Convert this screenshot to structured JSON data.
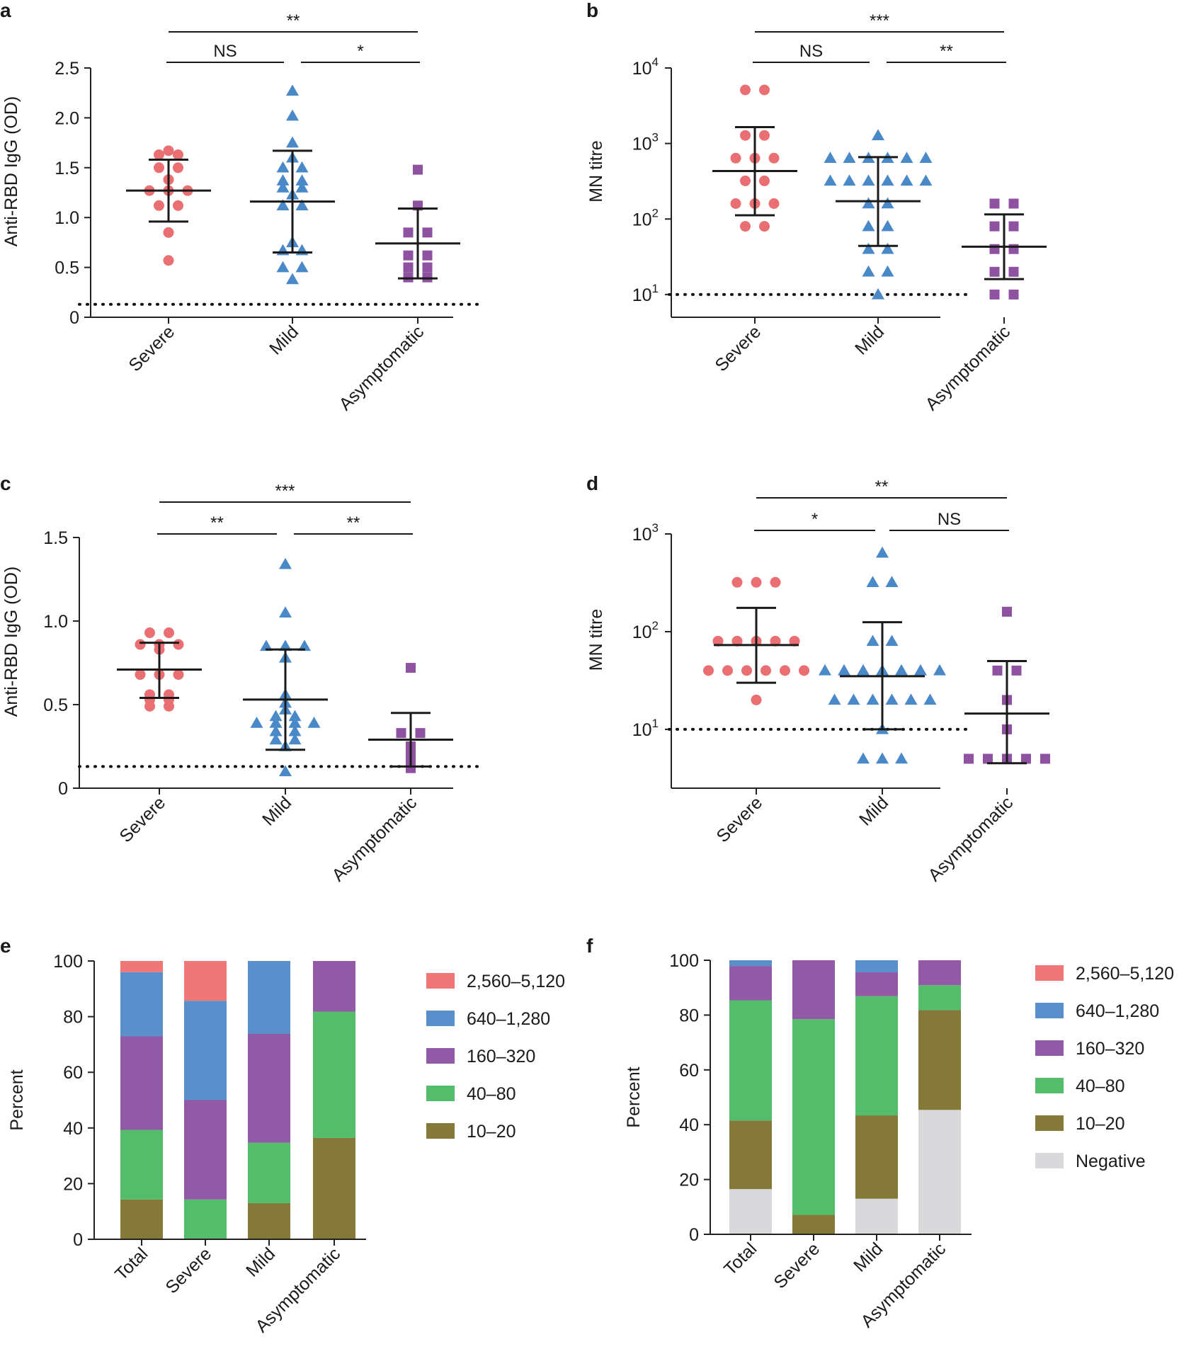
{
  "chart_data": [
    {
      "id": "a",
      "panel_label": "a",
      "type": "scatter",
      "ylabel": "Anti-RBD IgG (OD)",
      "ylim": [
        0,
        2.5
      ],
      "yticks": [
        "0",
        "0.5",
        "1.0",
        "1.5",
        "2.0",
        "2.5"
      ],
      "yscale": "linear",
      "categories": [
        "Severe",
        "Mild",
        "Asymptomatic"
      ],
      "cutoff": 0.13,
      "groups": [
        {
          "category": "Severe",
          "marker": "circle",
          "color": "#ea6f73",
          "values": [
            1.67,
            1.63,
            1.63,
            1.5,
            1.5,
            1.38,
            1.27,
            1.27,
            1.27,
            1.12,
            1.12,
            0.85,
            0.57
          ],
          "mean": 1.27,
          "sd_low": 0.96,
          "sd_high": 1.58
        },
        {
          "category": "Mild",
          "marker": "triangle",
          "color": "#4a89c8",
          "values": [
            2.27,
            2.02,
            1.75,
            1.6,
            1.5,
            1.5,
            1.37,
            1.37,
            1.3,
            1.3,
            1.23,
            1.12,
            1.12,
            0.75,
            0.67,
            0.67,
            0.5,
            0.5,
            0.38
          ],
          "mean": 1.16,
          "sd_low": 0.65,
          "sd_high": 1.67
        },
        {
          "category": "Asymptomatic",
          "marker": "square",
          "color": "#8e52a1",
          "values": [
            1.48,
            1.12,
            0.85,
            0.85,
            0.62,
            0.62,
            0.5,
            0.5,
            0.4,
            0.4
          ],
          "mean": 0.74,
          "sd_low": 0.39,
          "sd_high": 1.09
        }
      ],
      "comparisons": [
        {
          "from": "Severe",
          "to": "Mild",
          "label": "NS",
          "level": 1
        },
        {
          "from": "Mild",
          "to": "Asymptomatic",
          "label": "*",
          "level": 1
        },
        {
          "from": "Severe",
          "to": "Asymptomatic",
          "label": "**",
          "level": 2
        }
      ]
    },
    {
      "id": "b",
      "panel_label": "b",
      "type": "scatter",
      "ylabel": "MN titre",
      "ylim": [
        5,
        10000
      ],
      "yscale": "log",
      "yticks_log": [
        {
          "base": "10",
          "exp": "1"
        },
        {
          "base": "10",
          "exp": "2"
        },
        {
          "base": "10",
          "exp": "3"
        },
        {
          "base": "10",
          "exp": "4"
        }
      ],
      "categories": [
        "Severe",
        "Mild",
        "Asymptomatic"
      ],
      "cutoff": 10,
      "groups": [
        {
          "category": "Severe",
          "marker": "circle",
          "color": "#ea6f73",
          "values": [
            5120,
            5120,
            1280,
            1280,
            640,
            640,
            640,
            320,
            320,
            160,
            160,
            160,
            80,
            80
          ],
          "mean": 432,
          "sd_low": 112,
          "sd_high": 1650
        },
        {
          "category": "Mild",
          "marker": "triangle",
          "color": "#4a89c8",
          "values": [
            1280,
            640,
            640,
            640,
            640,
            640,
            640,
            320,
            320,
            320,
            320,
            320,
            320,
            160,
            160,
            80,
            80,
            40,
            40,
            20,
            20,
            10
          ],
          "mean": 172,
          "sd_low": 44,
          "sd_high": 660
        },
        {
          "category": "Asymptomatic",
          "marker": "square",
          "color": "#8e52a1",
          "values": [
            160,
            160,
            80,
            80,
            40,
            40,
            20,
            20,
            10,
            10
          ],
          "mean": 43,
          "sd_low": 16,
          "sd_high": 115
        }
      ],
      "comparisons": [
        {
          "from": "Severe",
          "to": "Mild",
          "label": "NS",
          "level": 1
        },
        {
          "from": "Mild",
          "to": "Asymptomatic",
          "label": "**",
          "level": 1
        },
        {
          "from": "Severe",
          "to": "Asymptomatic",
          "label": "***",
          "level": 2
        }
      ]
    },
    {
      "id": "c",
      "panel_label": "c",
      "type": "scatter",
      "ylabel": "Anti-RBD IgG (OD)",
      "ylim": [
        0,
        1.5
      ],
      "yticks": [
        "0",
        "0.5",
        "1.0",
        "1.5"
      ],
      "yscale": "linear",
      "categories": [
        "Severe",
        "Mild",
        "Asymptomatic"
      ],
      "cutoff": 0.13,
      "groups": [
        {
          "category": "Severe",
          "marker": "circle",
          "color": "#ea6f73",
          "values": [
            0.93,
            0.93,
            0.86,
            0.86,
            0.86,
            0.83,
            0.68,
            0.68,
            0.68,
            0.56,
            0.56,
            0.53,
            0.53,
            0.49,
            0.49
          ],
          "mean": 0.71,
          "sd_low": 0.54,
          "sd_high": 0.87
        },
        {
          "category": "Mild",
          "marker": "triangle",
          "color": "#4a89c8",
          "values": [
            1.34,
            1.05,
            0.85,
            0.85,
            0.85,
            0.78,
            0.56,
            0.51,
            0.47,
            0.43,
            0.43,
            0.39,
            0.39,
            0.39,
            0.39,
            0.34,
            0.34,
            0.29,
            0.29,
            0.25,
            0.1
          ],
          "mean": 0.53,
          "sd_low": 0.23,
          "sd_high": 0.83
        },
        {
          "category": "Asymptomatic",
          "marker": "square",
          "color": "#8e52a1",
          "values": [
            0.72,
            0.33,
            0.33,
            0.25,
            0.24,
            0.22,
            0.2,
            0.18,
            0.15,
            0.12
          ],
          "mean": 0.29,
          "sd_low": 0.13,
          "sd_high": 0.45
        }
      ],
      "comparisons": [
        {
          "from": "Severe",
          "to": "Mild",
          "label": "**",
          "level": 1
        },
        {
          "from": "Mild",
          "to": "Asymptomatic",
          "label": "**",
          "level": 1
        },
        {
          "from": "Severe",
          "to": "Asymptomatic",
          "label": "***",
          "level": 2
        }
      ]
    },
    {
      "id": "d",
      "panel_label": "d",
      "type": "scatter",
      "ylabel": "MN titre",
      "ylim": [
        2.5,
        1000
      ],
      "yscale": "log",
      "yticks_log": [
        {
          "base": "10",
          "exp": "1"
        },
        {
          "base": "10",
          "exp": "2"
        },
        {
          "base": "10",
          "exp": "3"
        }
      ],
      "categories": [
        "Severe",
        "Mild",
        "Asymptomatic"
      ],
      "cutoff": 10,
      "groups": [
        {
          "category": "Severe",
          "marker": "circle",
          "color": "#ea6f73",
          "values": [
            320,
            320,
            320,
            80,
            80,
            80,
            80,
            80,
            40,
            40,
            40,
            40,
            40,
            40,
            20
          ],
          "mean": 73,
          "sd_low": 30,
          "sd_high": 175
        },
        {
          "category": "Mild",
          "marker": "triangle",
          "color": "#4a89c8",
          "values": [
            640,
            320,
            320,
            80,
            80,
            40,
            40,
            40,
            40,
            40,
            40,
            40,
            20,
            20,
            20,
            20,
            20,
            20,
            10,
            5,
            5,
            5
          ],
          "mean": 35,
          "sd_low": 10,
          "sd_high": 125
        },
        {
          "category": "Asymptomatic",
          "marker": "square",
          "color": "#8e52a1",
          "values": [
            160,
            40,
            40,
            20,
            10,
            5,
            5,
            5,
            5,
            5
          ],
          "mean": 14.5,
          "sd_low": 4.5,
          "sd_high": 50
        }
      ],
      "comparisons": [
        {
          "from": "Severe",
          "to": "Mild",
          "label": "*",
          "level": 1
        },
        {
          "from": "Mild",
          "to": "Asymptomatic",
          "label": "NS",
          "level": 1
        },
        {
          "from": "Severe",
          "to": "Asymptomatic",
          "label": "**",
          "level": 2
        }
      ]
    },
    {
      "id": "e",
      "panel_label": "e",
      "type": "bar",
      "stacked": true,
      "ylabel": "Percent",
      "ylim": [
        0,
        100
      ],
      "yticks": [
        "0",
        "20",
        "40",
        "60",
        "80",
        "100"
      ],
      "categories": [
        "Total",
        "Severe",
        "Mild",
        "Asymptomatic"
      ],
      "series": [
        {
          "name": "10–20",
          "color": "#857939",
          "values": [
            14.3,
            0,
            13,
            36.4
          ]
        },
        {
          "name": "40–80",
          "color": "#53bd6b",
          "values": [
            25,
            14.3,
            21.7,
            45.4
          ]
        },
        {
          "name": "160–320",
          "color": "#9159a6",
          "values": [
            33.6,
            35.7,
            39.1,
            18.2
          ]
        },
        {
          "name": "640–1,280",
          "color": "#5a8fcc",
          "values": [
            23.1,
            35.7,
            26.2,
            0
          ]
        },
        {
          "name": "2,560–5,120",
          "color": "#ef7777",
          "values": [
            4,
            14.3,
            0,
            0
          ]
        }
      ],
      "legend_order": [
        "2,560–5,120",
        "640–1,280",
        "160–320",
        "40–80",
        "10–20"
      ]
    },
    {
      "id": "f",
      "panel_label": "f",
      "type": "bar",
      "stacked": true,
      "ylabel": "Percent",
      "ylim": [
        0,
        100
      ],
      "yticks": [
        "0",
        "20",
        "40",
        "60",
        "80",
        "100"
      ],
      "categories": [
        "Total",
        "Severe",
        "Mild",
        "Asymptomatic"
      ],
      "series": [
        {
          "name": "Negative",
          "color": "#d9d9db",
          "values": [
            16.5,
            0,
            13,
            45.4
          ]
        },
        {
          "name": "10–20",
          "color": "#857939",
          "values": [
            25,
            7.1,
            30.4,
            36.4
          ]
        },
        {
          "name": "40–80",
          "color": "#53bd6b",
          "values": [
            43.9,
            71.4,
            43.5,
            9.1
          ]
        },
        {
          "name": "160–320",
          "color": "#9159a6",
          "values": [
            12.5,
            21.5,
            8.7,
            9.1
          ]
        },
        {
          "name": "640–1,280",
          "color": "#5a8fcc",
          "values": [
            2.1,
            0,
            4.4,
            0
          ]
        },
        {
          "name": "2,560–5,120",
          "color": "#ef7777",
          "values": [
            0,
            0,
            0,
            0
          ]
        }
      ],
      "legend_order": [
        "2,560–5,120",
        "640–1,280",
        "160–320",
        "40–80",
        "10–20",
        "Negative"
      ]
    }
  ]
}
